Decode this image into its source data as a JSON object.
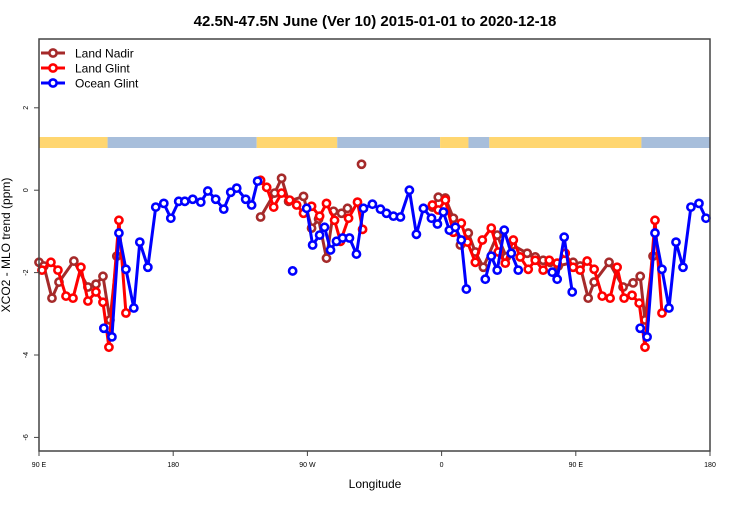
{
  "chart_data": {
    "type": "line",
    "title": "42.5N-47.5N June (Ver 10)   2015-01-01 to 2020-12-18",
    "xlabel": "Longitude",
    "ylabel": "XCO2 - MLO trend (ppm)",
    "xlim": [
      90,
      540
    ],
    "ylim": [
      -6.33,
      3.67
    ],
    "xticks": [
      {
        "value": 90,
        "label": "90 E"
      },
      {
        "value": 180,
        "label": "180"
      },
      {
        "value": 270,
        "label": "90 W"
      },
      {
        "value": 360,
        "label": "0"
      },
      {
        "value": 450,
        "label": "90 E"
      },
      {
        "value": 540,
        "label": "180"
      }
    ],
    "yticks": [
      {
        "value": 2,
        "label": "2"
      },
      {
        "value": 0,
        "label": "0"
      },
      {
        "value": -2,
        "label": "-2"
      },
      {
        "value": -4,
        "label": "-4"
      },
      {
        "value": -6,
        "label": "-6"
      }
    ],
    "grid": false,
    "legend_position": "top-left",
    "map_strip": {
      "land_color": "#FFD670",
      "ocean_color": "#A7BEDB",
      "segments": [
        {
          "from": 90,
          "to": 136,
          "type": "land"
        },
        {
          "from": 136,
          "to": 236,
          "type": "ocean"
        },
        {
          "from": 236,
          "to": 290,
          "type": "land"
        },
        {
          "from": 290,
          "to": 359,
          "type": "ocean"
        },
        {
          "from": 359,
          "to": 378,
          "type": "land"
        },
        {
          "from": 378,
          "to": 392,
          "type": "ocean"
        },
        {
          "from": 392,
          "to": 494,
          "type": "land"
        },
        {
          "from": 494,
          "to": 540,
          "type": "ocean"
        }
      ]
    },
    "series": [
      {
        "name": "Land Nadir",
        "color": "#A52A2A",
        "points": [
          [
            90.0,
            -1.75
          ],
          [
            93.3,
            -1.84
          ],
          [
            98.7,
            -2.62
          ],
          [
            103.4,
            -2.23
          ],
          [
            113.4,
            -1.72
          ],
          [
            122.8,
            -2.35
          ],
          [
            128.2,
            -2.28
          ],
          [
            132.9,
            -2.09
          ],
          [
            137.6,
            -3.15
          ],
          [
            142.2,
            -1.6
          ],
          null,
          [
            238.6,
            -0.65
          ],
          [
            248.0,
            -0.07
          ],
          [
            252.7,
            0.29
          ],
          [
            257.4,
            -0.27
          ],
          [
            267.4,
            -0.15
          ],
          [
            272.8,
            -0.92
          ],
          [
            277.5,
            -0.7
          ],
          [
            282.8,
            -1.65
          ],
          [
            287.5,
            -0.51
          ],
          [
            292.9,
            -0.56
          ],
          [
            296.9,
            -0.44
          ],
          null,
          [
            306.3,
            0.63
          ],
          null,
          [
            353.8,
            -0.41
          ],
          [
            357.8,
            -0.17
          ],
          [
            362.5,
            -0.19
          ],
          [
            367.9,
            -0.68
          ],
          [
            372.6,
            -1.33
          ],
          [
            377.9,
            -1.04
          ],
          [
            382.6,
            -1.5
          ],
          [
            388.0,
            -1.87
          ],
          [
            397.3,
            -1.09
          ],
          [
            403.4,
            -1.62
          ],
          [
            407.4,
            -1.33
          ],
          [
            417.4,
            -1.53
          ],
          [
            422.8,
            -1.62
          ],
          [
            428.1,
            -1.7
          ],
          [
            432.8,
            -1.75
          ],
          [
            438.2,
            -1.84
          ],
          [
            448.2,
            -1.75
          ],
          [
            452.9,
            -1.84
          ],
          [
            458.3,
            -2.62
          ],
          [
            462.3,
            -2.23
          ],
          [
            472.3,
            -1.75
          ],
          [
            481.7,
            -2.35
          ],
          [
            488.4,
            -2.25
          ],
          [
            493.2,
            -2.09
          ],
          [
            496.4,
            -3.15
          ],
          [
            501.8,
            -1.6
          ]
        ]
      },
      {
        "name": "Land Glint",
        "color": "#FF0000",
        "points": [
          [
            92.0,
            -1.94
          ],
          [
            98.0,
            -1.75
          ],
          [
            102.7,
            -1.94
          ],
          [
            108.1,
            -2.57
          ],
          [
            112.8,
            -2.62
          ],
          [
            118.1,
            -1.87
          ],
          [
            122.8,
            -2.69
          ],
          [
            128.2,
            -2.47
          ],
          [
            132.9,
            -2.72
          ],
          [
            136.9,
            -3.81
          ],
          [
            143.6,
            -0.73
          ],
          [
            148.3,
            -2.98
          ],
          null,
          [
            238.6,
            0.24
          ],
          [
            242.7,
            0.07
          ],
          [
            247.4,
            -0.41
          ],
          [
            252.7,
            -0.07
          ],
          [
            258.1,
            -0.24
          ],
          [
            262.8,
            -0.36
          ],
          [
            267.4,
            -0.56
          ],
          [
            272.8,
            -0.39
          ],
          [
            278.2,
            -0.63
          ],
          [
            282.8,
            -0.32
          ],
          [
            288.2,
            -0.73
          ],
          [
            292.2,
            -1.24
          ],
          [
            297.6,
            -0.68
          ],
          [
            303.6,
            -0.29
          ],
          [
            307.0,
            -0.95
          ],
          null,
          [
            353.8,
            -0.36
          ],
          [
            357.8,
            -0.48
          ],
          [
            362.5,
            -0.24
          ],
          [
            367.9,
            -1.02
          ],
          [
            373.2,
            -0.8
          ],
          [
            377.3,
            -1.26
          ],
          [
            382.6,
            -1.75
          ],
          [
            387.3,
            -1.21
          ],
          [
            393.3,
            -0.92
          ],
          [
            398.0,
            -1.5
          ],
          [
            402.7,
            -1.77
          ],
          [
            408.1,
            -1.21
          ],
          [
            412.7,
            -1.62
          ],
          [
            418.1,
            -1.92
          ],
          [
            422.8,
            -1.7
          ],
          [
            428.1,
            -1.94
          ],
          [
            432.2,
            -1.7
          ],
          [
            437.5,
            -1.77
          ],
          [
            442.9,
            -1.53
          ],
          [
            448.2,
            -1.87
          ],
          [
            452.9,
            -1.94
          ],
          [
            457.6,
            -1.72
          ],
          [
            462.3,
            -1.92
          ],
          [
            467.7,
            -2.57
          ],
          [
            473.0,
            -2.62
          ],
          [
            477.7,
            -1.87
          ],
          [
            482.4,
            -2.62
          ],
          [
            487.7,
            -2.55
          ],
          [
            492.5,
            -2.74
          ],
          [
            496.4,
            -3.81
          ],
          [
            503.1,
            -0.73
          ],
          [
            507.8,
            -2.98
          ]
        ]
      },
      {
        "name": "Ocean Glint",
        "color": "#0000FF",
        "points": [
          [
            133.5,
            -3.35
          ],
          [
            138.9,
            -3.56
          ],
          [
            143.6,
            -1.04
          ],
          [
            148.3,
            -1.92
          ],
          [
            153.6,
            -2.86
          ],
          [
            157.6,
            -1.26
          ],
          [
            163.0,
            -1.87
          ],
          [
            168.3,
            -0.41
          ],
          [
            173.7,
            -0.32
          ],
          [
            178.4,
            -0.68
          ],
          [
            183.7,
            -0.27
          ],
          [
            187.8,
            -0.27
          ],
          [
            193.1,
            -0.22
          ],
          [
            198.5,
            -0.29
          ],
          [
            203.2,
            -0.02
          ],
          [
            208.5,
            -0.22
          ],
          [
            213.9,
            -0.46
          ],
          [
            218.6,
            -0.05
          ],
          [
            222.6,
            0.05
          ],
          [
            228.6,
            -0.22
          ],
          [
            232.6,
            -0.36
          ],
          [
            236.6,
            0.22
          ],
          null,
          [
            260.1,
            -1.96
          ],
          null,
          [
            269.5,
            -0.44
          ],
          [
            273.5,
            -1.33
          ],
          [
            278.2,
            -1.09
          ],
          [
            281.5,
            -0.9
          ],
          [
            285.5,
            -1.45
          ],
          [
            289.5,
            -1.24
          ],
          [
            293.6,
            -1.16
          ],
          [
            298.2,
            -1.16
          ],
          [
            302.9,
            -1.55
          ],
          [
            307.6,
            -0.44
          ],
          [
            313.6,
            -0.34
          ],
          [
            319.0,
            -0.46
          ],
          [
            323.0,
            -0.56
          ],
          [
            327.7,
            -0.63
          ],
          [
            332.4,
            -0.65
          ],
          [
            338.4,
            0.0
          ],
          [
            343.1,
            -1.07
          ],
          [
            347.8,
            -0.44
          ],
          [
            353.2,
            -0.68
          ],
          [
            357.2,
            -0.82
          ],
          [
            361.2,
            -0.53
          ],
          [
            365.2,
            -0.97
          ],
          [
            369.2,
            -0.9
          ],
          [
            373.2,
            -1.21
          ],
          [
            376.6,
            -2.4
          ],
          null,
          [
            389.3,
            -2.16
          ],
          [
            393.3,
            -1.6
          ],
          [
            397.3,
            -1.94
          ],
          [
            402.0,
            -0.97
          ],
          [
            406.7,
            -1.53
          ],
          [
            411.4,
            -1.94
          ],
          null,
          [
            434.2,
            -1.99
          ],
          [
            437.5,
            -2.16
          ],
          [
            442.2,
            -1.14
          ],
          [
            447.6,
            -2.47
          ],
          null,
          [
            493.2,
            -3.35
          ],
          [
            497.8,
            -3.56
          ],
          [
            503.1,
            -1.04
          ],
          [
            507.8,
            -1.92
          ],
          [
            512.5,
            -2.86
          ],
          [
            517.2,
            -1.26
          ],
          [
            521.9,
            -1.87
          ],
          [
            527.2,
            -0.41
          ],
          [
            532.6,
            -0.32
          ],
          [
            537.3,
            -0.68
          ]
        ]
      }
    ]
  }
}
